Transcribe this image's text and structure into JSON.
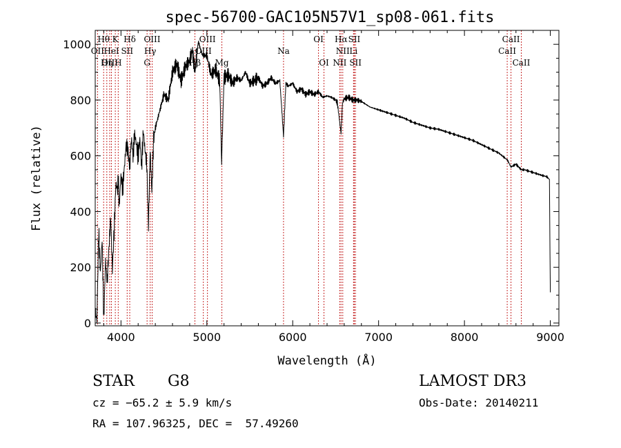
{
  "chart_data": {
    "type": "line",
    "title": "spec-56700-GAC105N57V1_sp08-061.fits",
    "xlabel": "Wavelength (Å)",
    "ylabel": "Flux (relative)",
    "xlim": [
      3700,
      9100
    ],
    "ylim": [
      -10,
      1050
    ],
    "x_ticks": [
      4000,
      5000,
      6000,
      7000,
      8000,
      9000
    ],
    "y_ticks": [
      0,
      200,
      400,
      600,
      800,
      1000
    ],
    "grid": false,
    "series": [
      {
        "name": "flux",
        "x": [
          3700,
          3720,
          3740,
          3760,
          3780,
          3800,
          3820,
          3840,
          3860,
          3880,
          3900,
          3920,
          3940,
          3960,
          3968,
          3980,
          4000,
          4020,
          4040,
          4060,
          4080,
          4102,
          4120,
          4140,
          4160,
          4180,
          4200,
          4220,
          4240,
          4260,
          4280,
          4300,
          4320,
          4340,
          4360,
          4380,
          4400,
          4450,
          4500,
          4550,
          4600,
          4650,
          4700,
          4750,
          4800,
          4830,
          4861,
          4900,
          4950,
          5000,
          5050,
          5100,
          5150,
          5172,
          5183,
          5200,
          5250,
          5300,
          5350,
          5400,
          5450,
          5500,
          5550,
          5600,
          5650,
          5700,
          5750,
          5800,
          5850,
          5893,
          5920,
          5950,
          6000,
          6050,
          6100,
          6150,
          6200,
          6250,
          6300,
          6350,
          6400,
          6450,
          6500,
          6520,
          6563,
          6580,
          6600,
          6650,
          6700,
          6750,
          6800,
          6850,
          6900,
          6950,
          7000,
          7100,
          7200,
          7300,
          7400,
          7500,
          7600,
          7700,
          7800,
          7900,
          8000,
          8100,
          8200,
          8300,
          8400,
          8500,
          8542,
          8600,
          8662,
          8700,
          8800,
          8900,
          8960,
          8990,
          9000
        ],
        "y": [
          40,
          10,
          330,
          180,
          300,
          10,
          220,
          150,
          270,
          380,
          190,
          330,
          500,
          480,
          520,
          420,
          530,
          480,
          560,
          640,
          620,
          560,
          660,
          600,
          680,
          640,
          600,
          660,
          560,
          690,
          620,
          570,
          350,
          620,
          470,
          660,
          700,
          760,
          820,
          800,
          900,
          930,
          870,
          920,
          940,
          980,
          900,
          1010,
          960,
          960,
          890,
          910,
          870,
          570,
          700,
          880,
          890,
          860,
          880,
          870,
          900,
          860,
          870,
          880,
          850,
          860,
          880,
          860,
          870,
          670,
          860,
          850,
          860,
          830,
          840,
          820,
          830,
          820,
          830,
          810,
          815,
          810,
          800,
          790,
          680,
          790,
          805,
          810,
          800,
          800,
          795,
          785,
          775,
          770,
          765,
          755,
          745,
          735,
          720,
          710,
          700,
          695,
          685,
          675,
          665,
          655,
          640,
          625,
          610,
          585,
          560,
          570,
          550,
          550,
          540,
          530,
          525,
          515,
          110
        ]
      }
    ],
    "lines": [
      {
        "label": "Hθ",
        "x": 3798,
        "row": 1
      },
      {
        "label": "OII",
        "x": 3727,
        "row": 2
      },
      {
        "label": "OIII",
        "x": 3869,
        "row": 3
      },
      {
        "label": "Hη",
        "x": 3835,
        "row": 3
      },
      {
        "label": "K",
        "x": 3934,
        "row": 1
      },
      {
        "label": "HeI",
        "x": 3889,
        "row": 2
      },
      {
        "label": "H",
        "x": 3968,
        "row": 3
      },
      {
        "label": "Hδ",
        "x": 4102,
        "row": 1
      },
      {
        "label": "SII",
        "x": 4072,
        "row": 2
      },
      {
        "label": "OIII",
        "x": 4363,
        "row": 1
      },
      {
        "label": "Hγ",
        "x": 4340,
        "row": 2
      },
      {
        "label": "G",
        "x": 4304,
        "row": 3
      },
      {
        "label": "OIII",
        "x": 5007,
        "row": 1
      },
      {
        "label": "OIII",
        "x": 4959,
        "row": 2
      },
      {
        "label": "Hβ",
        "x": 4861,
        "row": 3
      },
      {
        "label": "Mg",
        "x": 5175,
        "row": 3
      },
      {
        "label": "Na",
        "x": 5893,
        "row": 2
      },
      {
        "label": "OI",
        "x": 6300,
        "row": 1
      },
      {
        "label": "OI",
        "x": 6364,
        "row": 3
      },
      {
        "label": "Hα",
        "x": 6563,
        "row": 1
      },
      {
        "label": "SII",
        "x": 6717,
        "row": 1
      },
      {
        "label": "NII",
        "x": 6583,
        "row": 2
      },
      {
        "label": "Li",
        "x": 6708,
        "row": 2
      },
      {
        "label": "NII",
        "x": 6548,
        "row": 3
      },
      {
        "label": "SII",
        "x": 6731,
        "row": 3
      },
      {
        "label": "CaII",
        "x": 8542,
        "row": 1
      },
      {
        "label": "CaII",
        "x": 8498,
        "row": 2
      },
      {
        "label": "CaII",
        "x": 8662,
        "row": 3
      }
    ]
  },
  "info": {
    "class": "STAR",
    "subclass": "G8",
    "survey": "LAMOST DR3",
    "cz": "cz = −65.2 ± 5.9 km/s",
    "obs_date": "Obs-Date: 20140211",
    "radec": "RA = 107.96325, DEC =  57.49260"
  }
}
